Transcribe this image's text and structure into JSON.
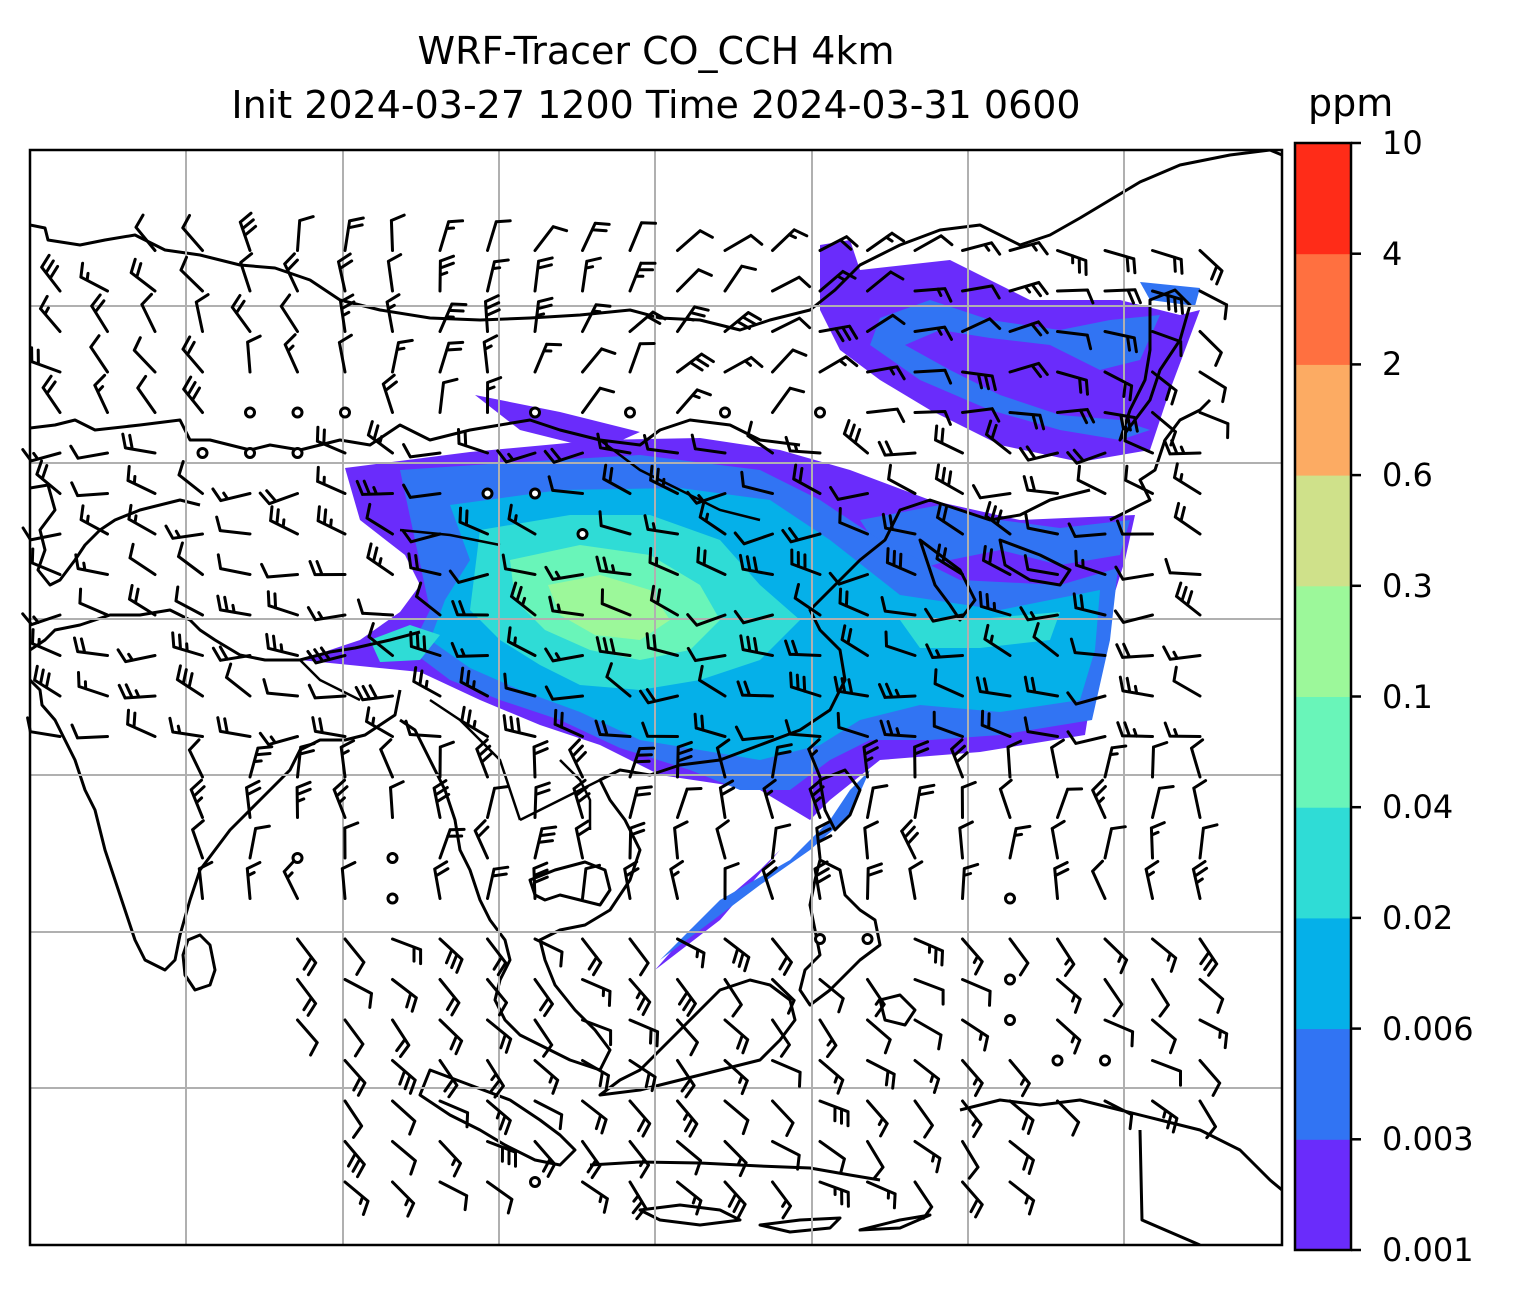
{
  "title": {
    "line1": "WRF-Tracer CO_CCH 4km",
    "line2": "Init 2024-03-27 1200 Time 2024-03-31 0600"
  },
  "colorbar": {
    "unit": "ppm",
    "levels": [
      "0.001",
      "0.003",
      "0.006",
      "0.02",
      "0.04",
      "0.1",
      "0.3",
      "0.6",
      "2",
      "4",
      "10"
    ],
    "colors": [
      "#6a2cfb",
      "#3174f3",
      "#05b0e9",
      "#2fdcd6",
      "#69f5b9",
      "#9cf89a",
      "#cfe18a",
      "#fcab63",
      "#ff7040",
      "#ff2c18"
    ]
  },
  "map": {
    "gridlines": "on",
    "grid_color": "#b0b0b0",
    "coastline_color": "#000000",
    "features": [
      "coastlines",
      "country-borders",
      "wind-barbs",
      "calm-wind-circles",
      "tracer-concentration-fill"
    ]
  }
}
